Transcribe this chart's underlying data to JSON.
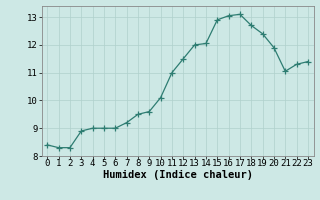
{
  "x": [
    0,
    1,
    2,
    3,
    4,
    5,
    6,
    7,
    8,
    9,
    10,
    11,
    12,
    13,
    14,
    15,
    16,
    17,
    18,
    19,
    20,
    21,
    22,
    23
  ],
  "y": [
    8.4,
    8.3,
    8.3,
    8.9,
    9.0,
    9.0,
    9.0,
    9.2,
    9.5,
    9.6,
    10.1,
    11.0,
    11.5,
    12.0,
    12.05,
    12.9,
    13.05,
    13.1,
    12.7,
    12.4,
    11.9,
    11.05,
    11.3,
    11.4
  ],
  "xlabel": "Humidex (Indice chaleur)",
  "ylim": [
    8,
    13.4
  ],
  "xlim": [
    -0.5,
    23.5
  ],
  "yticks": [
    8,
    9,
    10,
    11,
    12,
    13
  ],
  "xticks": [
    0,
    1,
    2,
    3,
    4,
    5,
    6,
    7,
    8,
    9,
    10,
    11,
    12,
    13,
    14,
    15,
    16,
    17,
    18,
    19,
    20,
    21,
    22,
    23
  ],
  "line_color": "#2e7d72",
  "marker": "+",
  "marker_size": 4,
  "bg_color": "#cde8e5",
  "grid_color": "#b0d0cc",
  "xlabel_fontsize": 7.5,
  "tick_fontsize": 6.5
}
